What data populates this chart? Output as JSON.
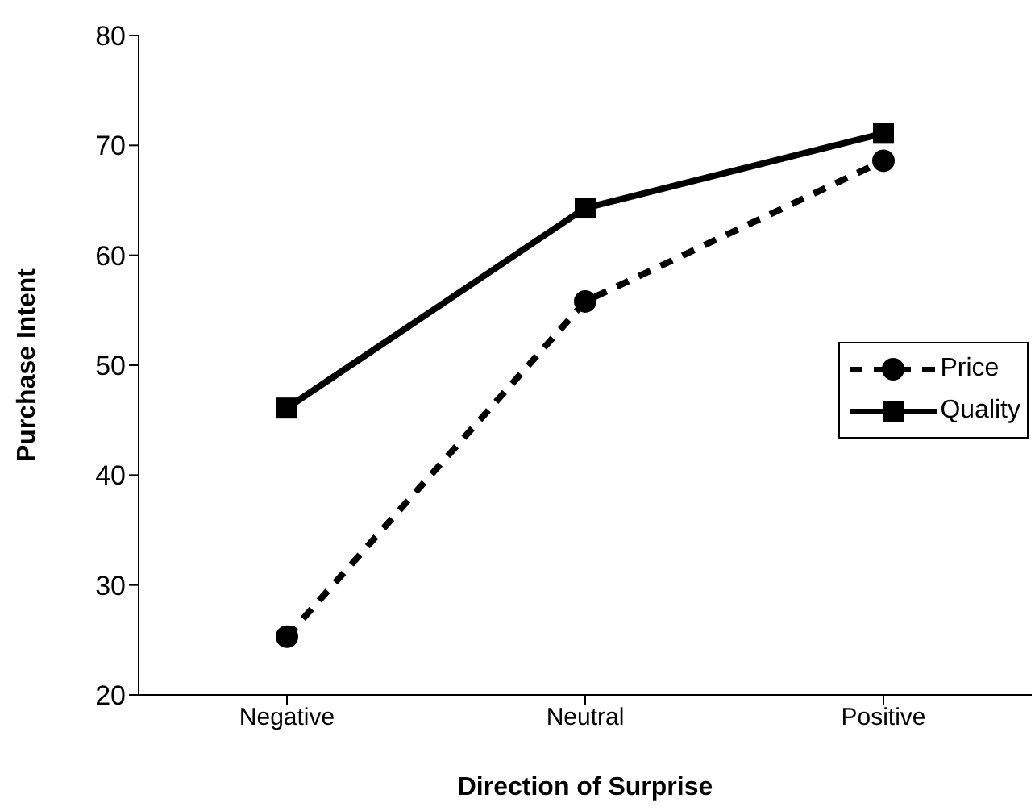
{
  "chart_data": {
    "type": "line",
    "xlabel": "Direction of Surprise",
    "ylabel": "Purchase Intent",
    "categories": [
      "Negative",
      "Neutral",
      "Positive"
    ],
    "series": [
      {
        "name": "Price",
        "color": "#000000",
        "values": [
          25.3,
          55.8,
          68.6
        ],
        "marker": "circle",
        "line_style": "dashed"
      },
      {
        "name": "Quality",
        "color": "#000000",
        "values": [
          46.1,
          64.3,
          71.1
        ],
        "marker": "square",
        "line_style": "solid"
      }
    ],
    "ylim": [
      20,
      80
    ],
    "yticks": [
      20,
      30,
      40,
      50,
      60,
      70,
      80
    ],
    "grid": false,
    "legend": "right"
  }
}
